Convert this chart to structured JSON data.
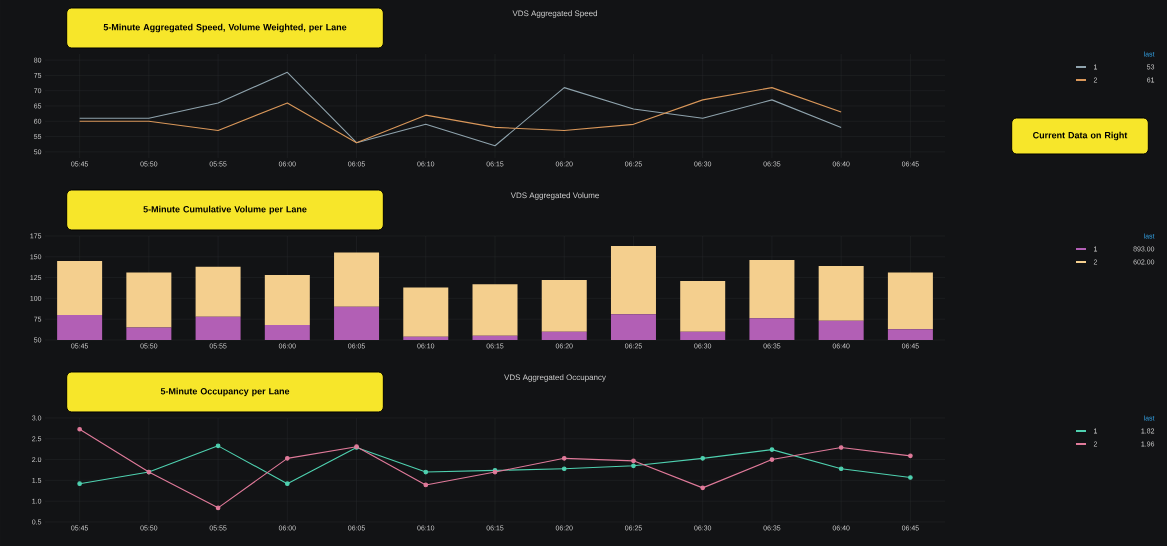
{
  "chart_data": [
    {
      "type": "line",
      "title": "VDS Aggregated Speed",
      "legend_title": "last",
      "legend": "right",
      "grid": true,
      "categories": [
        "05:45",
        "05:50",
        "05:55",
        "06:00",
        "06:05",
        "06:10",
        "06:15",
        "06:20",
        "06:25",
        "06:30",
        "06:35",
        "06:40",
        "06:45"
      ],
      "ylim": [
        48,
        82
      ],
      "yticks": [
        50,
        55,
        60,
        65,
        70,
        75,
        80
      ],
      "series": [
        {
          "name": "1",
          "color": "#8fa3ad",
          "values": [
            61,
            61,
            66,
            76,
            53,
            59,
            52,
            71,
            64,
            61,
            67,
            58,
            null
          ]
        },
        {
          "name": "2",
          "color": "#d9975a",
          "values": [
            60,
            60,
            57,
            66,
            53,
            62,
            58,
            57,
            59,
            67,
            71,
            63,
            null
          ]
        }
      ],
      "annotations": [
        "5-Minute Aggregated Speed, Volume Weighted, per Lane",
        "53",
        "61",
        "Current Data on Right"
      ]
    },
    {
      "type": "bar",
      "stacked": true,
      "title": "VDS Aggregated Volume",
      "legend_title": "last",
      "legend": "right",
      "grid": true,
      "categories": [
        "05:45",
        "05:50",
        "05:55",
        "06:00",
        "06:05",
        "06:10",
        "06:15",
        "06:20",
        "06:25",
        "06:30",
        "06:35",
        "06:40",
        "06:45"
      ],
      "ylim": [
        50,
        175
      ],
      "yticks": [
        50,
        75,
        100,
        125,
        150,
        175
      ],
      "series": [
        {
          "name": "1",
          "color": "#b25fb5",
          "values": [
            80,
            65,
            78,
            68,
            90,
            54,
            55,
            60,
            81,
            60,
            76,
            73,
            63
          ]
        },
        {
          "name": "2",
          "color": "#f4cf8e",
          "values": [
            65,
            66,
            60,
            60,
            65,
            59,
            62,
            62,
            82,
            61,
            70,
            66,
            68
          ]
        }
      ],
      "annotations": [
        "5-Minute Cumulative Volume per Lane",
        "893.00",
        "602.00"
      ]
    },
    {
      "type": "line",
      "title": "VDS Aggregated Occupancy",
      "legend_title": "last",
      "legend": "right",
      "grid": true,
      "marker": "circle",
      "categories": [
        "05:45",
        "05:50",
        "05:55",
        "06:00",
        "06:05",
        "06:10",
        "06:15",
        "06:20",
        "06:25",
        "06:30",
        "06:35",
        "06:40",
        "06:45"
      ],
      "ylim": [
        0.5,
        3.0
      ],
      "yticks": [
        0.5,
        {
          "value": 1,
          "label": "1.0"
        },
        1.5,
        {
          "value": 2,
          "label": "2.0"
        },
        2.5,
        {
          "value": 3,
          "label": "3.0"
        }
      ],
      "series": [
        {
          "name": "1",
          "color": "#4fd1b0",
          "values": [
            1.42,
            1.7,
            2.33,
            1.42,
            2.29,
            1.7,
            1.74,
            1.78,
            1.85,
            2.03,
            2.24,
            1.78,
            1.57
          ]
        },
        {
          "name": "2",
          "color": "#e07a9a",
          "values": [
            2.73,
            1.7,
            0.84,
            2.03,
            2.31,
            1.39,
            1.7,
            2.03,
            1.97,
            1.32,
            2.0,
            2.29,
            2.09
          ]
        }
      ],
      "annotations": [
        "5-Minute Occupancy per Lane",
        "1.82",
        "1.96"
      ]
    }
  ]
}
